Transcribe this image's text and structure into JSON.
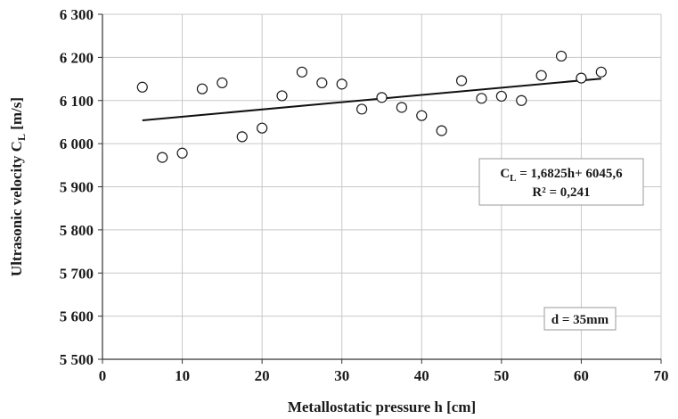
{
  "chart_data": {
    "type": "scatter",
    "xlabel": "Metallostatic  pressure h [cm]",
    "ylabel": {
      "prefix": "Ultrasonic  velocity  C",
      "subscript": "L",
      "suffix": " [m/s]"
    },
    "xlim": [
      0,
      70
    ],
    "ylim": [
      5500,
      6300
    ],
    "x_ticks": [
      0,
      10,
      20,
      30,
      40,
      50,
      60,
      70
    ],
    "x_tick_labels": [
      "0",
      "10",
      "20",
      "30",
      "40",
      "50",
      "60",
      "70"
    ],
    "y_ticks": [
      5500,
      5600,
      5700,
      5800,
      5900,
      6000,
      6100,
      6200,
      6300
    ],
    "y_tick_labels": [
      "5 500",
      "5 600",
      "5 700",
      "5 800",
      "5 900",
      "6 000",
      "6 100",
      "6 200",
      "6 300"
    ],
    "grid": {
      "vertical": true,
      "horizontal": true
    },
    "series": [
      {
        "marker": "open-circle",
        "x": [
          5,
          7.5,
          10,
          12.5,
          15,
          17.5,
          20,
          22.5,
          25,
          27.5,
          30,
          32.5,
          35,
          37.5,
          40,
          42.5,
          45,
          47.5,
          50,
          52.5,
          55,
          57.5,
          60,
          62.5
        ],
        "y": [
          6131,
          5968,
          5978,
          6127,
          6141,
          6016,
          6036,
          6111,
          6166,
          6141,
          6138,
          6080,
          6107,
          6084,
          6065,
          6030,
          6146,
          6105,
          6110,
          6100,
          6158,
          6203,
          6152,
          6166
        ]
      }
    ],
    "trendline": {
      "type": "linear",
      "slope": 1.6825,
      "intercept": 6045.6,
      "x_range": [
        5,
        62.5
      ]
    },
    "annotations": {
      "equation": {
        "prefix": "C",
        "subscript": "L",
        "suffix": " = 1,6825h+ 6045,6"
      },
      "r2": "R² = 0,241",
      "diameter": "d = 35mm"
    },
    "colors": {
      "grid": "#c8c8c8",
      "axis": "#333333",
      "marker_stroke": "#1a1a1a",
      "marker_fill": "#ffffff",
      "trendline": "#111111",
      "text": "#1a1a1a"
    }
  }
}
